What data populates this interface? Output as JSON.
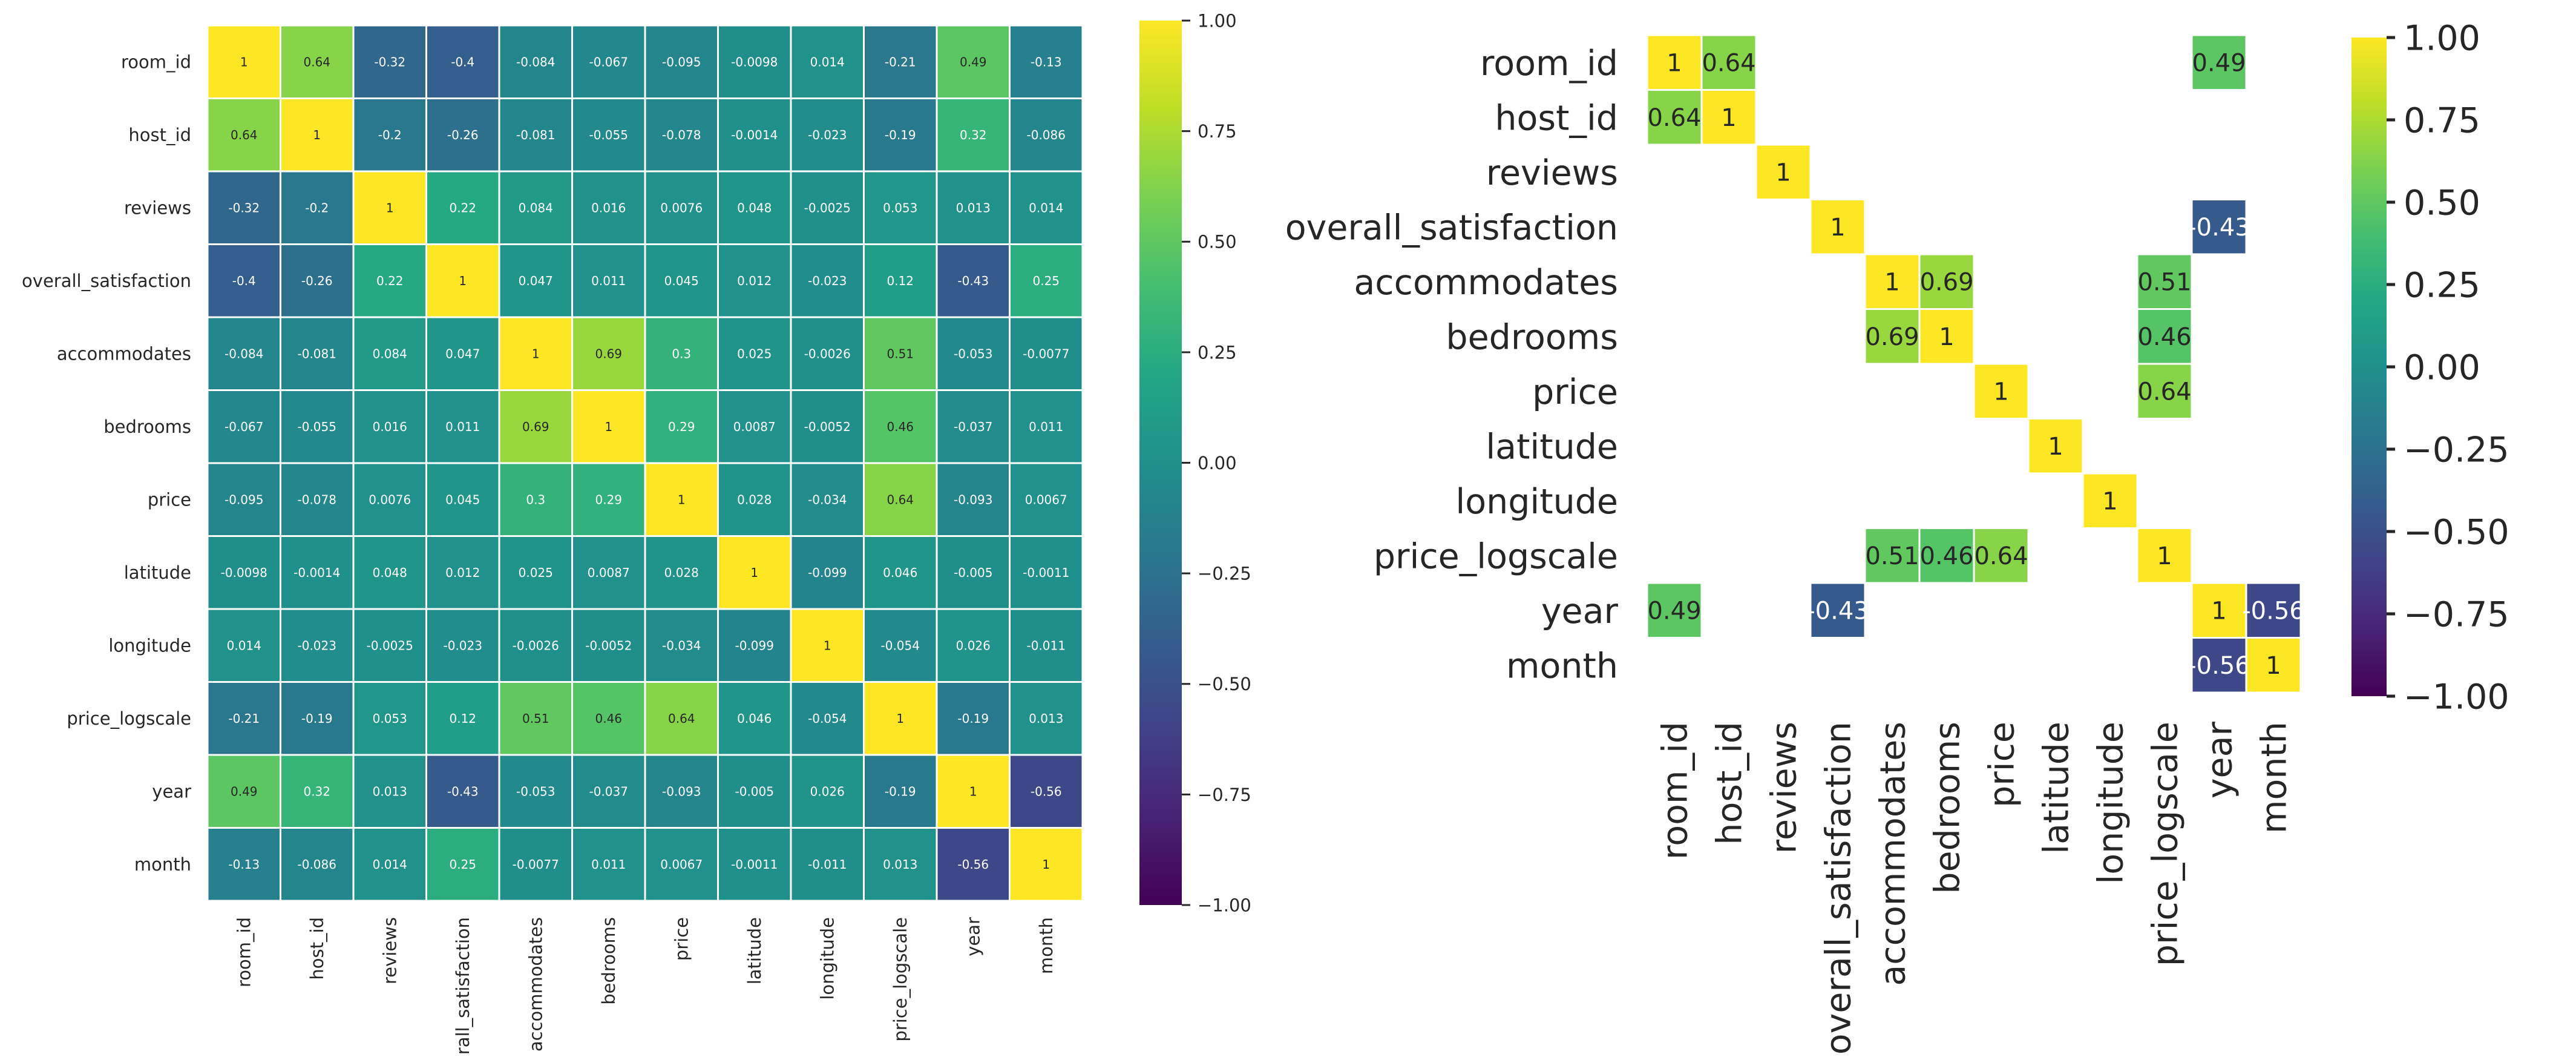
{
  "chart_data": [
    {
      "type": "heatmap",
      "colormap": "viridis",
      "vmin": -1,
      "vmax": 1,
      "colorbar_ticks": [
        "1.00",
        "0.75",
        "0.50",
        "0.25",
        "0.00",
        "−0.25",
        "−0.50",
        "−0.75",
        "−1.00"
      ],
      "colorbar_tick_values": [
        1,
        0.75,
        0.5,
        0.25,
        0,
        -0.25,
        -0.5,
        -0.75,
        -1
      ],
      "row_labels": [
        "room_id",
        "host_id",
        "reviews",
        "overall_satisfaction",
        "accommodates",
        "bedrooms",
        "price",
        "latitude",
        "longitude",
        "price_logscale",
        "year",
        "month"
      ],
      "col_labels": [
        "room_id",
        "host_id",
        "reviews",
        "rall_satisfaction",
        "accommodates",
        "bedrooms",
        "price",
        "latitude",
        "longitude",
        "price_logscale",
        "year",
        "month"
      ],
      "matrix": [
        [
          1,
          0.64,
          -0.32,
          -0.4,
          -0.084,
          -0.067,
          -0.095,
          -0.0098,
          0.014,
          -0.21,
          0.49,
          -0.13
        ],
        [
          0.64,
          1,
          -0.2,
          -0.26,
          -0.081,
          -0.055,
          -0.078,
          -0.0014,
          -0.023,
          -0.19,
          0.32,
          -0.086
        ],
        [
          -0.32,
          -0.2,
          1,
          0.22,
          0.084,
          0.016,
          0.0076,
          0.048,
          -0.0025,
          0.053,
          0.013,
          0.014
        ],
        [
          -0.4,
          -0.26,
          0.22,
          1,
          0.047,
          0.011,
          0.045,
          0.012,
          -0.023,
          0.12,
          -0.43,
          0.25
        ],
        [
          -0.084,
          -0.081,
          0.084,
          0.047,
          1,
          0.69,
          0.3,
          0.025,
          -0.0026,
          0.51,
          -0.053,
          -0.0077
        ],
        [
          -0.067,
          -0.055,
          0.016,
          0.011,
          0.69,
          1,
          0.29,
          0.0087,
          -0.0052,
          0.46,
          -0.037,
          0.011
        ],
        [
          -0.095,
          -0.078,
          0.0076,
          0.045,
          0.3,
          0.29,
          1,
          0.028,
          -0.034,
          0.64,
          -0.093,
          0.0067
        ],
        [
          -0.0098,
          -0.0014,
          0.048,
          0.012,
          0.025,
          0.0087,
          0.028,
          1,
          -0.099,
          0.046,
          -0.005,
          -0.0011
        ],
        [
          0.014,
          -0.023,
          -0.0025,
          -0.023,
          -0.0026,
          -0.0052,
          -0.034,
          -0.099,
          1,
          -0.054,
          0.026,
          -0.011
        ],
        [
          -0.21,
          -0.19,
          0.053,
          0.12,
          0.51,
          0.46,
          0.64,
          0.046,
          -0.054,
          1,
          -0.19,
          0.013
        ],
        [
          0.49,
          0.32,
          0.013,
          -0.43,
          -0.053,
          -0.037,
          -0.093,
          -0.005,
          0.026,
          -0.19,
          1,
          -0.56
        ],
        [
          -0.13,
          -0.086,
          0.014,
          0.25,
          -0.0077,
          0.011,
          0.0067,
          -0.0011,
          -0.011,
          0.013,
          -0.56,
          1
        ]
      ]
    },
    {
      "type": "heatmap",
      "colormap": "viridis",
      "vmin": -1,
      "vmax": 1,
      "masked_threshold": 0.4,
      "colorbar_ticks": [
        "1.00",
        "0.75",
        "0.50",
        "0.25",
        "0.00",
        "−0.25",
        "−0.50",
        "−0.75",
        "−1.00"
      ],
      "colorbar_tick_values": [
        1,
        0.75,
        0.5,
        0.25,
        0,
        -0.25,
        -0.5,
        -0.75,
        -1
      ],
      "row_labels": [
        "room_id",
        "host_id",
        "reviews",
        "overall_satisfaction",
        "accommodates",
        "bedrooms",
        "price",
        "latitude",
        "longitude",
        "price_logscale",
        "year",
        "month"
      ],
      "col_labels": [
        "room_id",
        "host_id",
        "reviews",
        "overall_satisfaction",
        "accommodates",
        "bedrooms",
        "price",
        "latitude",
        "longitude",
        "price_logscale",
        "year",
        "month"
      ],
      "matrix": [
        [
          1,
          0.64,
          null,
          null,
          null,
          null,
          null,
          null,
          null,
          null,
          0.49,
          null
        ],
        [
          0.64,
          1,
          null,
          null,
          null,
          null,
          null,
          null,
          null,
          null,
          null,
          null
        ],
        [
          null,
          null,
          1,
          null,
          null,
          null,
          null,
          null,
          null,
          null,
          null,
          null
        ],
        [
          null,
          null,
          null,
          1,
          null,
          null,
          null,
          null,
          null,
          null,
          -0.43,
          null
        ],
        [
          null,
          null,
          null,
          null,
          1,
          0.69,
          null,
          null,
          null,
          0.51,
          null,
          null
        ],
        [
          null,
          null,
          null,
          null,
          0.69,
          1,
          null,
          null,
          null,
          0.46,
          null,
          null
        ],
        [
          null,
          null,
          null,
          null,
          null,
          null,
          1,
          null,
          null,
          0.64,
          null,
          null
        ],
        [
          null,
          null,
          null,
          null,
          null,
          null,
          null,
          1,
          null,
          null,
          null,
          null
        ],
        [
          null,
          null,
          null,
          null,
          null,
          null,
          null,
          null,
          1,
          null,
          null,
          null
        ],
        [
          null,
          null,
          null,
          null,
          0.51,
          0.46,
          0.64,
          null,
          null,
          1,
          null,
          null
        ],
        [
          0.49,
          null,
          null,
          -0.43,
          null,
          null,
          null,
          null,
          null,
          null,
          1,
          -0.56
        ],
        [
          null,
          null,
          null,
          null,
          null,
          null,
          null,
          null,
          null,
          null,
          -0.56,
          1
        ]
      ]
    }
  ]
}
